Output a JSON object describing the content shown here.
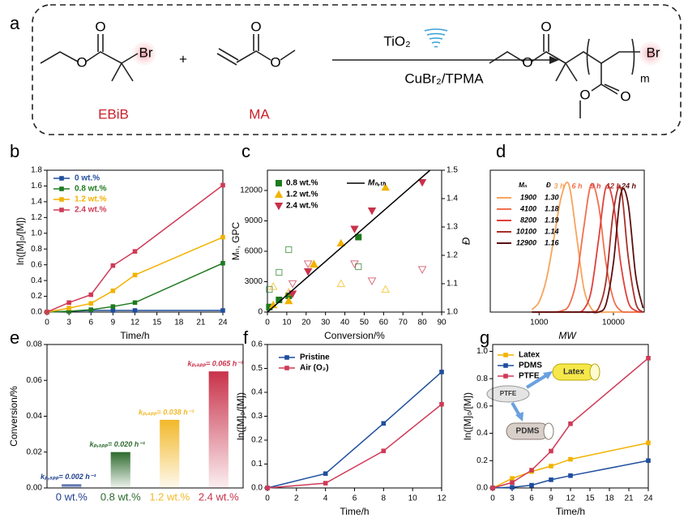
{
  "scheme": {
    "panel": "a",
    "reactant1": "EBiB",
    "reactant2": "MA",
    "plus": "+",
    "catalyst": "TiO₂",
    "ligand": "CuBr₂/TPMA",
    "br1": "Br",
    "br2": "Br",
    "m": "m",
    "oxygen": "O"
  },
  "chart_data": [
    {
      "panel": "b",
      "type": "line",
      "markers": "square",
      "legend": "upper left",
      "legend_text_colored": true,
      "x": [
        0,
        3,
        6,
        9,
        12,
        24
      ],
      "xlim": [
        0,
        24
      ],
      "xticks": [
        0,
        3,
        6,
        9,
        12,
        15,
        18,
        21,
        24
      ],
      "ylim": [
        0,
        1.8
      ],
      "yticks": [
        {
          "value": 0,
          "label": "0.0"
        },
        0.2,
        0.4,
        0.6,
        0.8,
        {
          "value": 1,
          "label": "1.0"
        },
        1.2,
        1.4,
        1.6,
        1.8
      ],
      "xlabel": "Time/h",
      "ylabel": "ln([M]₀/[M])",
      "series": [
        {
          "name": "0 wt.%",
          "color": "#1f4e9e",
          "values": [
            0,
            0.01,
            0.02,
            0.02,
            0.02,
            0.02
          ]
        },
        {
          "name": "0.8 wt.%",
          "color": "#1e7a1e",
          "values": [
            0,
            0.01,
            0.03,
            0.07,
            0.12,
            0.62
          ]
        },
        {
          "name": "1.2 wt.%",
          "color": "#f2b200",
          "values": [
            0,
            0.05,
            0.11,
            0.27,
            0.47,
            0.95
          ]
        },
        {
          "name": "2.4 wt.%",
          "color": "#cf3a57",
          "values": [
            0,
            0.12,
            0.22,
            0.59,
            0.77,
            1.61
          ]
        }
      ]
    },
    {
      "panel": "c",
      "type": "scatter",
      "legend": "upper left",
      "xlim": [
        0,
        90
      ],
      "xticks": [
        0,
        10,
        20,
        30,
        40,
        50,
        60,
        70,
        80,
        90
      ],
      "ylim": [
        0,
        14000
      ],
      "yticks": [
        0,
        3000,
        6000,
        9000,
        12000
      ],
      "y2lim": [
        1,
        1.5
      ],
      "y2ticks": [
        {
          "value": 1,
          "label": "1.0"
        },
        1.1,
        1.2,
        1.3,
        1.4,
        1.5
      ],
      "xlabel": "Conversion/%",
      "ylabel": "Mₙ, GPC",
      "y2label": "Đ",
      "series": [
        {
          "name": "0.8 wt.%",
          "color": "#1e7a1e",
          "marker": "square",
          "x": [
            1,
            6,
            11,
            47
          ],
          "values": [
            500,
            1200,
            1600,
            7400
          ],
          "dispersity": [
            1.08,
            1.14,
            1.22,
            1.16
          ]
        },
        {
          "name": "1.2 wt.%",
          "color": "#f2b200",
          "marker": "triangle",
          "x": [
            3,
            11,
            24,
            38,
            61
          ],
          "values": [
            700,
            1100,
            4700,
            6800,
            12300
          ],
          "dispersity": [
            1.09,
            1.07,
            1.17,
            1.1,
            1.08
          ]
        },
        {
          "name": "2.4 wt.%",
          "color": "#c8324a",
          "marker": "triangle-down",
          "x": [
            13,
            21,
            45,
            54,
            80
          ],
          "values": [
            1800,
            4000,
            8200,
            10000,
            12800
          ],
          "dispersity": [
            1.1,
            1.17,
            1.17,
            1.11,
            1.15
          ]
        }
      ],
      "theory_line": {
        "name": "Mₙ,ₜₕ",
        "color": "#000000",
        "x": [
          0,
          84
        ],
        "values": [
          0,
          14000
        ]
      }
    },
    {
      "panel": "d",
      "type": "line",
      "smooth": true,
      "log_x": true,
      "x": [
        800,
        1000,
        1260,
        1580,
        2000,
        2510,
        3160,
        3980,
        5010,
        6310,
        7940,
        10000,
        12600,
        15800,
        20000,
        25100
      ],
      "xlim": [
        220,
        26000
      ],
      "xticks": [
        1000,
        10000
      ],
      "ylim": [
        0,
        1.1
      ],
      "xlabel": "MW",
      "legend_table": {
        "headers": [
          "Mₙ",
          "Đ"
        ],
        "mn": [
          "1900",
          "4100",
          "8200",
          "10100",
          "12900"
        ],
        "dispersity": [
          "1.30",
          "1.18",
          "1.19",
          "1.14",
          "1.16"
        ]
      },
      "series": [
        {
          "name": "3 h",
          "color": "#f6a55c",
          "values": [
            0.02,
            0.08,
            0.26,
            0.57,
            0.9,
            0.99,
            0.61,
            0.19,
            0.03,
            0,
            0,
            0,
            0,
            0,
            0,
            0
          ]
        },
        {
          "name": "6 h",
          "color": "#f0704e",
          "values": [
            0,
            0,
            0,
            0,
            0.01,
            0.05,
            0.24,
            0.65,
            0.99,
            0.83,
            0.38,
            0.1,
            0.01,
            0,
            0,
            0
          ]
        },
        {
          "name": "9 h",
          "color": "#e0403a",
          "values": [
            0,
            0,
            0,
            0,
            0,
            0,
            0,
            0.02,
            0.16,
            0.56,
            0.97,
            0.84,
            0.37,
            0.08,
            0.01,
            0
          ]
        },
        {
          "name": "12 h",
          "color": "#a8302a",
          "values": [
            0,
            0,
            0,
            0,
            0,
            0,
            0,
            0,
            0,
            0.03,
            0.24,
            0.78,
            0.96,
            0.43,
            0.07,
            0
          ]
        },
        {
          "name": "24 h",
          "color": "#5a1010",
          "values": [
            0,
            0,
            0,
            0,
            0,
            0,
            0,
            0,
            0,
            0,
            0.06,
            0.38,
            0.92,
            0.84,
            0.28,
            0.03
          ]
        }
      ]
    },
    {
      "panel": "e",
      "type": "bar",
      "gradient": true,
      "categories": [
        "0 wt.%",
        "0.8 wt.%",
        "1.2 wt.%",
        "2.4 wt.%"
      ],
      "colors": [
        "#1f3f8f",
        "#2e6b2e",
        "#f2b82a",
        "#c8324a"
      ],
      "values": [
        0.002,
        0.02,
        0.038,
        0.065
      ],
      "value_labels": [
        "kₚ,ₐₚₚ= 0.002 h⁻¹",
        "kₚ,ₐₚₚ= 0.020 h⁻¹",
        "kₚ,ₐₚₚ= 0.038 h⁻¹",
        "kₚ,ₐₚₚ= 0.065 h⁻¹"
      ],
      "ylim": [
        0,
        0.08
      ],
      "yticks": [
        {
          "value": 0,
          "label": "0.00"
        },
        0.02,
        0.04,
        0.06,
        0.08
      ],
      "ylabel": "Conversion/%"
    },
    {
      "panel": "f",
      "type": "line",
      "markers": "square",
      "legend": "upper left",
      "x": [
        0,
        4,
        8,
        12
      ],
      "xlim": [
        0,
        12
      ],
      "xticks": [
        0,
        2,
        4,
        6,
        8,
        10,
        12
      ],
      "ylim": [
        0,
        0.6
      ],
      "yticks": [
        {
          "value": 0,
          "label": "0.0"
        },
        0.1,
        0.2,
        0.3,
        0.4,
        0.5,
        0.6
      ],
      "xlabel": "Time/h",
      "ylabel": "ln([M]₀/[M])",
      "series": [
        {
          "name": "Pristine",
          "color": "#1f4e9e",
          "values": [
            0,
            0.06,
            0.27,
            0.485
          ]
        },
        {
          "name": "Air (O₂)",
          "color": "#cf3a57",
          "values": [
            0,
            0.02,
            0.155,
            0.35
          ]
        }
      ]
    },
    {
      "panel": "g",
      "type": "line",
      "markers": "square",
      "legend": "upper left",
      "x": [
        0,
        3,
        6,
        9,
        12,
        24
      ],
      "xlim": [
        0,
        24
      ],
      "xticks": [
        0,
        3,
        6,
        9,
        12,
        15,
        18,
        21,
        24
      ],
      "ylim": [
        0,
        1.05
      ],
      "yticks": [
        {
          "value": 0,
          "label": "0.0"
        },
        0.2,
        0.4,
        0.6,
        0.8,
        {
          "value": 1,
          "label": "1.0"
        }
      ],
      "xlabel": "Time/h",
      "ylabel": "ln([M]₀/[M])",
      "insets": [
        "PTFE",
        "Latex",
        "PDMS"
      ],
      "series": [
        {
          "name": "Latex",
          "color": "#f2b200",
          "values": [
            0,
            0.07,
            0.12,
            0.16,
            0.21,
            0.33
          ]
        },
        {
          "name": "PDMS",
          "color": "#1f4e9e",
          "values": [
            0,
            0.005,
            0.02,
            0.06,
            0.09,
            0.2
          ]
        },
        {
          "name": "PTFE",
          "color": "#cf3a57",
          "values": [
            0,
            0.04,
            0.13,
            0.27,
            0.47,
            0.95
          ]
        }
      ]
    }
  ]
}
